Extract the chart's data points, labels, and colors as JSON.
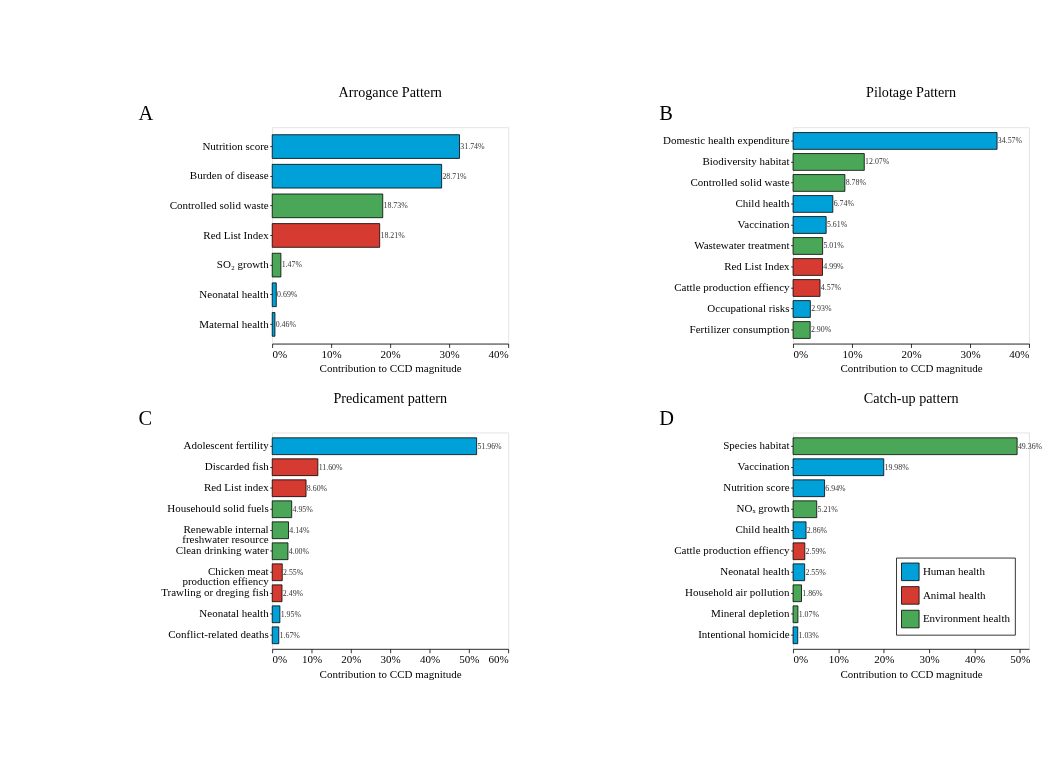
{
  "chart_data": [
    {
      "type": "bar",
      "orientation": "horizontal",
      "title": "Arrogance Pattern",
      "xlabel": "Contribution to CCD magnitude",
      "annotations": [
        "A"
      ],
      "grid": false,
      "categories": [
        "Nutrition score",
        "Burden of disease",
        "Controlled solid waste",
        "Red List Index",
        "SO₂ growth",
        "Neonatal health",
        "Maternal health"
      ],
      "xlim": [
        0,
        40
      ],
      "xticks": [
        {
          "value": 0,
          "label": "0%"
        },
        {
          "value": 10,
          "label": "10%"
        },
        {
          "value": 20,
          "label": "20%"
        },
        {
          "value": 30,
          "label": "30%"
        },
        {
          "value": 40,
          "label": "40%"
        }
      ],
      "series": [
        {
          "color": "#00a0d8",
          "values": [
            31.74,
            28.71,
            null,
            null,
            null,
            0.69,
            0.46
          ],
          "value_labels": [
            "31.74%",
            "28.71%",
            null,
            null,
            null,
            "0.69%",
            "0.46%"
          ]
        },
        {
          "color": "#d63b32",
          "values": [
            null,
            null,
            null,
            18.21,
            null,
            null,
            null
          ],
          "value_labels": [
            null,
            null,
            null,
            "18.21%",
            null,
            null,
            null
          ]
        },
        {
          "color": "#49a757",
          "values": [
            null,
            null,
            18.73,
            null,
            1.47,
            null,
            null
          ],
          "value_labels": [
            null,
            null,
            "18.73%",
            null,
            "1.47%",
            null,
            null
          ]
        }
      ]
    },
    {
      "type": "bar",
      "orientation": "horizontal",
      "title": "Pilotage Pattern",
      "xlabel": "Contribution to CCD magnitude",
      "annotations": [
        "B"
      ],
      "grid": false,
      "categories": [
        "Domestic health expenditure",
        "Biodiversity habitat",
        "Controlled solid waste",
        "Child health",
        "Vaccination",
        "Wastewater treatment",
        "Red List Index",
        "Cattle production effiency",
        "Occupational risks",
        "Fertilizer consumption"
      ],
      "xlim": [
        0,
        40
      ],
      "xticks": [
        {
          "value": 0,
          "label": "0%"
        },
        {
          "value": 10,
          "label": "10%"
        },
        {
          "value": 20,
          "label": "20%"
        },
        {
          "value": 30,
          "label": "30%"
        },
        {
          "value": 40,
          "label": "40%"
        }
      ],
      "series": [
        {
          "color": "#00a0d8",
          "values": [
            34.57,
            null,
            null,
            6.74,
            5.61,
            null,
            null,
            null,
            2.93,
            null
          ],
          "value_labels": [
            "34.57%",
            null,
            null,
            "6.74%",
            "5.61%",
            null,
            null,
            null,
            "2.93%",
            null
          ]
        },
        {
          "color": "#d63b32",
          "values": [
            null,
            null,
            null,
            null,
            null,
            null,
            4.99,
            4.57,
            null,
            null
          ],
          "value_labels": [
            null,
            null,
            null,
            null,
            null,
            null,
            "4.99%",
            "4.57%",
            null,
            null
          ]
        },
        {
          "color": "#49a757",
          "values": [
            null,
            12.07,
            8.78,
            null,
            null,
            5.01,
            null,
            null,
            null,
            2.9
          ],
          "value_labels": [
            null,
            "12.07%",
            "8.78%",
            null,
            null,
            "5.01%",
            null,
            null,
            null,
            "2.90%"
          ]
        }
      ]
    },
    {
      "type": "bar",
      "orientation": "horizontal",
      "title": "Predicament pattern",
      "xlabel": "Contribution to CCD magnitude",
      "annotations": [
        "C"
      ],
      "grid": false,
      "categories": [
        "Adolescent fertility",
        "Discarded fish",
        "Red List index",
        "Househould solid fuels",
        "Renewable internal\nfreshwater resource",
        "Clean drinking water",
        "Chicken meat\nproduction effiency",
        "Trawling or dreging fish",
        "Neonatal health",
        "Conflict-related deaths"
      ],
      "xlim": [
        0,
        60
      ],
      "xticks": [
        {
          "value": 0,
          "label": "0%"
        },
        {
          "value": 10,
          "label": "10%"
        },
        {
          "value": 20,
          "label": "20%"
        },
        {
          "value": 30,
          "label": "30%"
        },
        {
          "value": 40,
          "label": "40%"
        },
        {
          "value": 50,
          "label": "50%"
        },
        {
          "value": 60,
          "label": "60%"
        }
      ],
      "series": [
        {
          "color": "#00a0d8",
          "values": [
            51.96,
            null,
            null,
            null,
            null,
            null,
            null,
            null,
            1.95,
            1.67
          ],
          "value_labels": [
            "51.96%",
            null,
            null,
            null,
            null,
            null,
            null,
            null,
            "1.95%",
            "1.67%"
          ]
        },
        {
          "color": "#d63b32",
          "values": [
            null,
            11.6,
            8.6,
            null,
            null,
            null,
            2.55,
            2.49,
            null,
            null
          ],
          "value_labels": [
            null,
            "11.60%",
            "8.60%",
            null,
            null,
            null,
            "2.55%",
            "2.49%",
            null,
            null
          ]
        },
        {
          "color": "#49a757",
          "values": [
            null,
            null,
            null,
            4.95,
            4.14,
            4.0,
            null,
            null,
            null,
            null
          ],
          "value_labels": [
            null,
            null,
            null,
            "4.95%",
            "4.14%",
            "4.00%",
            null,
            null,
            null,
            null
          ]
        }
      ]
    },
    {
      "type": "bar",
      "orientation": "horizontal",
      "title": "Catch-up pattern",
      "xlabel": "Contribution to CCD magnitude",
      "annotations": [
        "D"
      ],
      "grid": false,
      "legend": "bottom right",
      "categories": [
        "Species habitat",
        "Vaccination",
        "Nutrition score",
        "NOₓ growth",
        "Child health",
        "Cattle production effiency",
        "Neonatal health",
        "Household air pollution",
        "Mineral depletion",
        "Intentional homicide"
      ],
      "xlim": [
        0,
        52
      ],
      "xticks": [
        {
          "value": 0,
          "label": "0%"
        },
        {
          "value": 10,
          "label": "10%"
        },
        {
          "value": 20,
          "label": "20%"
        },
        {
          "value": 30,
          "label": "30%"
        },
        {
          "value": 40,
          "label": "40%"
        },
        {
          "value": 50,
          "label": "50%"
        }
      ],
      "series": [
        {
          "name": "Human health",
          "color": "#00a0d8",
          "values": [
            null,
            19.98,
            6.94,
            null,
            2.86,
            null,
            2.55,
            null,
            null,
            1.03
          ],
          "value_labels": [
            null,
            "19.98%",
            "6.94%",
            null,
            "2.86%",
            null,
            "2.55%",
            null,
            null,
            "1.03%"
          ]
        },
        {
          "name": "Animal health",
          "color": "#d63b32",
          "values": [
            null,
            null,
            null,
            null,
            null,
            2.59,
            null,
            null,
            null,
            null
          ],
          "value_labels": [
            null,
            null,
            null,
            null,
            null,
            "2.59%",
            null,
            null,
            null,
            null
          ]
        },
        {
          "name": "Environment health",
          "color": "#49a757",
          "values": [
            49.36,
            null,
            null,
            5.21,
            null,
            null,
            null,
            1.86,
            1.07,
            null
          ],
          "value_labels": [
            "49.36%",
            null,
            null,
            "5.21%",
            null,
            null,
            null,
            "1.86%",
            "1.07%",
            null
          ]
        }
      ]
    }
  ]
}
